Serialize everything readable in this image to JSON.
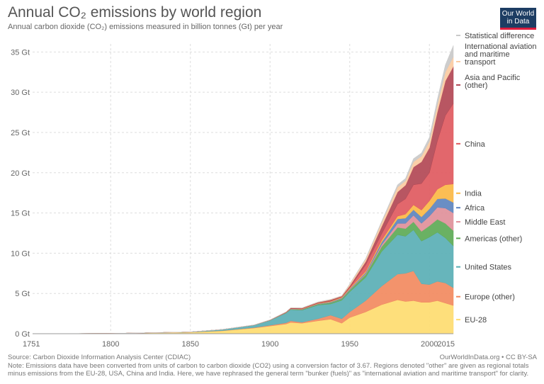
{
  "header": {
    "title": "Annual CO₂ emissions by world region",
    "subtitle": "Annual carbon dioxide (CO₂) emissions measured in billion tonnes (Gt) per year"
  },
  "logo": {
    "line1": "Our World",
    "line2": "in Data"
  },
  "footer": {
    "source": "Source: Carbon Dioxide Information Analysis Center (CDIAC)",
    "credit": "OurWorldInData.org • CC BY-SA",
    "note": "Note: Emissions data have been converted from units of carbon to carbon dioxide (CO2) using a conversion factor of 3.67. Regions denoted \"other\" are given as regional totals minus emissions from the EU-28, USA, China and India. Here, we have rephrased the general term \"bunker (fuels)\" as \"international aviation and maritime transport\" for clarity."
  },
  "colors": {
    "eu28": "#fedc70",
    "europe_other": "#f28a5f",
    "united_states": "#5aafb5",
    "americas_other": "#5daa56",
    "middle_east": "#e0909a",
    "africa": "#5d84bf",
    "india": "#fbb845",
    "china": "#df5a5f",
    "asia_pacific_other": "#b24855",
    "aviation": "#fbcba2",
    "statistical_difference": "#c9c9c9",
    "grid": "#dddddd"
  },
  "chart_data": {
    "type": "area",
    "stacked": true,
    "title": "Annual CO₂ emissions by world region",
    "subtitle": "Annual carbon dioxide (CO₂) emissions measured in billion tonnes (Gt) per year",
    "xlim": [
      1751,
      2015
    ],
    "ylim": [
      0,
      36
    ],
    "x_ticks": [
      1751,
      1800,
      1850,
      1900,
      1950,
      2000,
      2015
    ],
    "y_ticks": [
      0,
      5,
      10,
      15,
      20,
      25,
      30,
      35
    ],
    "y_tick_labels": [
      "0 Gt",
      "5 Gt",
      "10 Gt",
      "15 Gt",
      "20 Gt",
      "25 Gt",
      "30 Gt",
      "35 Gt"
    ],
    "grid": true,
    "legend_placement": "right",
    "x": [
      1751,
      1800,
      1850,
      1870,
      1890,
      1900,
      1910,
      1913,
      1920,
      1930,
      1938,
      1945,
      1950,
      1960,
      1970,
      1980,
      1985,
      1990,
      1995,
      2000,
      2005,
      2010,
      2015
    ],
    "series": [
      {
        "name": "EU-28",
        "key": "eu28",
        "values": [
          0.01,
          0.03,
          0.18,
          0.35,
          0.7,
          0.95,
          1.2,
          1.4,
          1.3,
          1.6,
          1.8,
          1.3,
          2.0,
          2.7,
          3.6,
          4.2,
          4.0,
          4.1,
          3.9,
          3.9,
          4.1,
          3.8,
          3.5
        ]
      },
      {
        "name": "Europe (other)",
        "key": "europe_other",
        "values": [
          0.0,
          0.0,
          0.01,
          0.03,
          0.06,
          0.1,
          0.15,
          0.2,
          0.12,
          0.25,
          0.5,
          0.55,
          0.7,
          1.4,
          2.3,
          3.2,
          3.5,
          3.7,
          2.3,
          2.2,
          2.4,
          2.5,
          2.2
        ]
      },
      {
        "name": "United States",
        "key": "united_states",
        "values": [
          0.0,
          0.0,
          0.03,
          0.15,
          0.3,
          0.6,
          1.2,
          1.4,
          1.5,
          1.7,
          1.4,
          2.3,
          2.5,
          2.9,
          4.3,
          4.9,
          4.6,
          5.1,
          5.3,
          5.9,
          6.1,
          5.6,
          5.2
        ]
      },
      {
        "name": "Americas (other)",
        "key": "americas_other",
        "values": [
          0.0,
          0.0,
          0.0,
          0.0,
          0.01,
          0.02,
          0.04,
          0.05,
          0.07,
          0.1,
          0.15,
          0.18,
          0.2,
          0.35,
          0.6,
          0.9,
          0.95,
          1.0,
          1.2,
          1.4,
          1.6,
          1.8,
          1.9
        ]
      },
      {
        "name": "Middle East",
        "key": "middle_east",
        "values": [
          0.0,
          0.0,
          0.0,
          0.0,
          0.0,
          0.0,
          0.0,
          0.0,
          0.0,
          0.01,
          0.02,
          0.03,
          0.05,
          0.1,
          0.25,
          0.5,
          0.65,
          0.8,
          1.0,
          1.2,
          1.5,
          1.9,
          2.2
        ]
      },
      {
        "name": "Africa",
        "key": "africa",
        "values": [
          0.0,
          0.0,
          0.0,
          0.0,
          0.0,
          0.01,
          0.02,
          0.03,
          0.04,
          0.05,
          0.07,
          0.08,
          0.1,
          0.15,
          0.3,
          0.55,
          0.65,
          0.7,
          0.8,
          0.9,
          1.05,
          1.2,
          1.3
        ]
      },
      {
        "name": "India",
        "key": "india",
        "values": [
          0.0,
          0.0,
          0.0,
          0.0,
          0.01,
          0.02,
          0.03,
          0.04,
          0.05,
          0.06,
          0.08,
          0.09,
          0.1,
          0.15,
          0.25,
          0.35,
          0.5,
          0.6,
          0.85,
          1.0,
          1.2,
          1.7,
          2.3
        ]
      },
      {
        "name": "China",
        "key": "china",
        "values": [
          0.0,
          0.0,
          0.0,
          0.0,
          0.0,
          0.0,
          0.0,
          0.01,
          0.01,
          0.02,
          0.03,
          0.03,
          0.08,
          0.8,
          0.8,
          1.5,
          1.9,
          2.5,
          3.3,
          3.5,
          6.0,
          8.6,
          10.0
        ]
      },
      {
        "name": "Asia and Pacific (other)",
        "key": "asia_pacific_other",
        "values": [
          0.0,
          0.0,
          0.0,
          0.0,
          0.01,
          0.02,
          0.05,
          0.07,
          0.08,
          0.1,
          0.15,
          0.1,
          0.2,
          0.4,
          0.9,
          1.5,
          1.7,
          2.2,
          2.7,
          3.1,
          3.6,
          4.3,
          4.6
        ]
      },
      {
        "name": "International aviation and maritime transport",
        "key": "aviation",
        "values": [
          0.0,
          0.0,
          0.0,
          0.0,
          0.0,
          0.0,
          0.02,
          0.03,
          0.04,
          0.05,
          0.06,
          0.05,
          0.2,
          0.3,
          0.5,
          0.6,
          0.55,
          0.65,
          0.7,
          0.8,
          0.9,
          1.1,
          1.2
        ]
      },
      {
        "name": "Statistical difference",
        "key": "statistical_difference",
        "values": [
          0.0,
          0.0,
          0.0,
          0.0,
          0.0,
          0.0,
          0.0,
          0.0,
          0.0,
          0.0,
          0.0,
          0.0,
          0.05,
          0.1,
          0.15,
          0.3,
          0.3,
          0.4,
          0.4,
          0.5,
          0.7,
          0.9,
          1.4
        ]
      }
    ]
  }
}
